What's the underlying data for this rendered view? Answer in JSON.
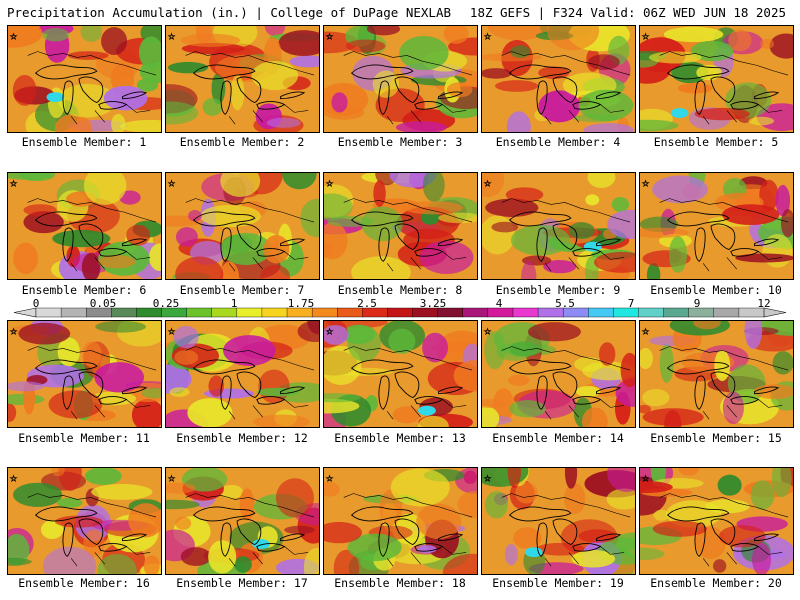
{
  "header": {
    "title": "Precipitation Accumulation (in.) | College of DuPage NEXLAB",
    "run": "18Z GEFS | F324 Valid: 06Z WED JUN 18 2025"
  },
  "legend": {
    "ticks": [
      "0",
      "0.05",
      "0.25",
      "1",
      "1.75",
      "2.5",
      "3.25",
      "4",
      "5.5",
      "7",
      "9",
      "12"
    ],
    "colors": [
      "#d8d8d8",
      "#b4b4b4",
      "#8c8c8c",
      "#5a8a5a",
      "#2e8b2e",
      "#3aa83a",
      "#6cc22a",
      "#a8d820",
      "#e8ee2a",
      "#f6d420",
      "#f8b020",
      "#f28a1e",
      "#ea5a18",
      "#dc2a18",
      "#c41418",
      "#9c1022",
      "#821030",
      "#a8167a",
      "#d41a9c",
      "#e838d0",
      "#b070e8",
      "#8c8cf4",
      "#44c8f4",
      "#20e8e0",
      "#60d0c8",
      "#5aa890",
      "#8cb09c",
      "#a8a8a8",
      "#c8c8c8"
    ]
  },
  "map_palette": {
    "base": "#e89a2c",
    "green": "#5cb83a",
    "dark_green": "#2e8b2e",
    "yellow": "#e8e42a",
    "orange": "#f07a20",
    "red": "#d42018",
    "dark_red": "#9c1022",
    "magenta": "#c81aa0",
    "violet": "#b070e8",
    "cyan": "#30d8e8",
    "gray": "#9a9a9a",
    "coast": "#000000"
  },
  "panels": [
    {
      "caption": "Ensemble Member: 1"
    },
    {
      "caption": "Ensemble Member: 2"
    },
    {
      "caption": "Ensemble Member: 3"
    },
    {
      "caption": "Ensemble Member: 4"
    },
    {
      "caption": "Ensemble Member: 5"
    },
    {
      "caption": "Ensemble Member: 6"
    },
    {
      "caption": "Ensemble Member: 7"
    },
    {
      "caption": "Ensemble Member: 8"
    },
    {
      "caption": "Ensemble Member: 9"
    },
    {
      "caption": "Ensemble Member: 10"
    },
    {
      "caption": "Ensemble Member: 11"
    },
    {
      "caption": "Ensemble Member: 12"
    },
    {
      "caption": "Ensemble Member: 13"
    },
    {
      "caption": "Ensemble Member: 14"
    },
    {
      "caption": "Ensemble Member: 15"
    },
    {
      "caption": "Ensemble Member: 16"
    },
    {
      "caption": "Ensemble Member: 17"
    },
    {
      "caption": "Ensemble Member: 18"
    },
    {
      "caption": "Ensemble Member: 19"
    },
    {
      "caption": "Ensemble Member: 20"
    }
  ]
}
